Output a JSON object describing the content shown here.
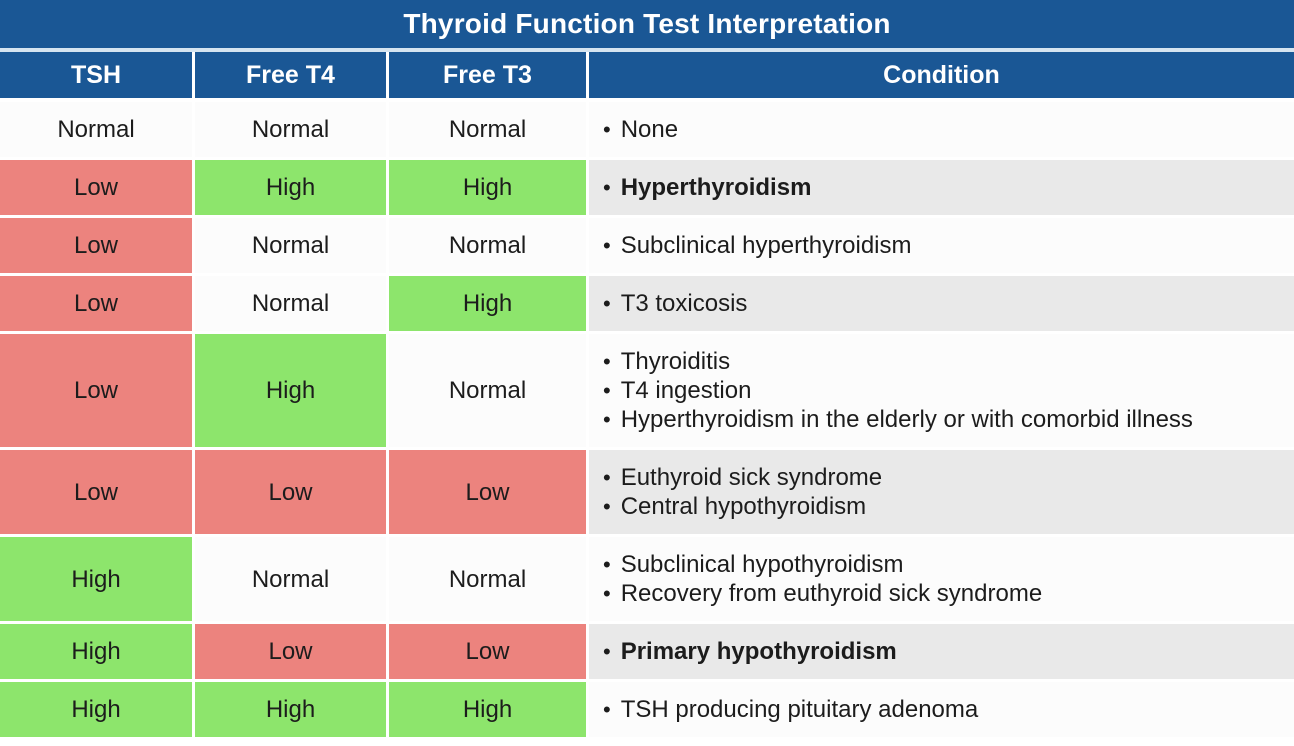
{
  "chart_data": {
    "type": "table",
    "title": "Thyroid Function Test Interpretation",
    "columns": [
      "TSH",
      "Free T4",
      "Free T3",
      "Condition"
    ],
    "bullet_char": "•",
    "rows": [
      {
        "tsh": "Normal",
        "free_t4": "Normal",
        "free_t3": "Normal",
        "conditions": [
          "None"
        ],
        "bold": false,
        "shaded": false
      },
      {
        "tsh": "Low",
        "free_t4": "High",
        "free_t3": "High",
        "conditions": [
          "Hyperthyroidism"
        ],
        "bold": true,
        "shaded": true
      },
      {
        "tsh": "Low",
        "free_t4": "Normal",
        "free_t3": "Normal",
        "conditions": [
          "Subclinical hyperthyroidism"
        ],
        "bold": false,
        "shaded": false
      },
      {
        "tsh": "Low",
        "free_t4": "Normal",
        "free_t3": "High",
        "conditions": [
          "T3 toxicosis"
        ],
        "bold": false,
        "shaded": true
      },
      {
        "tsh": "Low",
        "free_t4": "High",
        "free_t3": "Normal",
        "conditions": [
          "Thyroiditis",
          "T4 ingestion",
          "Hyperthyroidism in the elderly or with comorbid illness"
        ],
        "bold": false,
        "shaded": false
      },
      {
        "tsh": "Low",
        "free_t4": "Low",
        "free_t3": "Low",
        "conditions": [
          "Euthyroid sick syndrome",
          "Central hypothyroidism"
        ],
        "bold": false,
        "shaded": true
      },
      {
        "tsh": "High",
        "free_t4": "Normal",
        "free_t3": "Normal",
        "conditions": [
          "Subclinical hypothyroidism",
          "Recovery from euthyroid sick syndrome"
        ],
        "bold": false,
        "shaded": false
      },
      {
        "tsh": "High",
        "free_t4": "Low",
        "free_t3": "Low",
        "conditions": [
          "Primary hypothyroidism"
        ],
        "bold": true,
        "shaded": true
      },
      {
        "tsh": "High",
        "free_t4": "High",
        "free_t3": "High",
        "conditions": [
          "TSH producing pituitary adenoma"
        ],
        "bold": false,
        "shaded": false
      }
    ]
  },
  "colors": {
    "header_blue": "#1a5795",
    "title_separator": "#d5e4f0",
    "low_red": "#ec837e",
    "high_green": "#8de56c",
    "normal_white": "#fcfcfc",
    "shaded_row_gray": "#e9e9e9",
    "text_dark": "#1c1c1c"
  }
}
